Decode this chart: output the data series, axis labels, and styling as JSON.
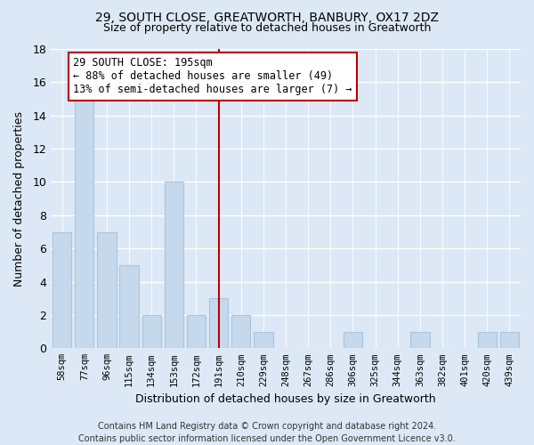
{
  "title1": "29, SOUTH CLOSE, GREATWORTH, BANBURY, OX17 2DZ",
  "title2": "Size of property relative to detached houses in Greatworth",
  "xlabel": "Distribution of detached houses by size in Greatworth",
  "ylabel": "Number of detached properties",
  "categories": [
    "58sqm",
    "77sqm",
    "96sqm",
    "115sqm",
    "134sqm",
    "153sqm",
    "172sqm",
    "191sqm",
    "210sqm",
    "229sqm",
    "248sqm",
    "267sqm",
    "286sqm",
    "306sqm",
    "325sqm",
    "344sqm",
    "363sqm",
    "382sqm",
    "401sqm",
    "420sqm",
    "439sqm"
  ],
  "values": [
    7,
    15,
    7,
    5,
    2,
    10,
    2,
    3,
    2,
    1,
    0,
    0,
    0,
    1,
    0,
    0,
    1,
    0,
    0,
    1,
    1
  ],
  "bar_color": "#c6d9ec",
  "bar_edge_color": "#aac4de",
  "background_color": "#dce8f5",
  "grid_color": "#ffffff",
  "vline_index": 7,
  "vline_color": "#bb0000",
  "annotation_text": "29 SOUTH CLOSE: 195sqm\n← 88% of detached houses are smaller (49)\n13% of semi-detached houses are larger (7) →",
  "annotation_box_color": "#ffffff",
  "annotation_box_edge": "#bb0000",
  "ylim": [
    0,
    18
  ],
  "yticks": [
    0,
    2,
    4,
    6,
    8,
    10,
    12,
    14,
    16,
    18
  ],
  "footer": "Contains HM Land Registry data © Crown copyright and database right 2024.\nContains public sector information licensed under the Open Government Licence v3.0.",
  "title1_fontsize": 10,
  "title2_fontsize": 9,
  "ylabel_fontsize": 9,
  "xlabel_fontsize": 9
}
